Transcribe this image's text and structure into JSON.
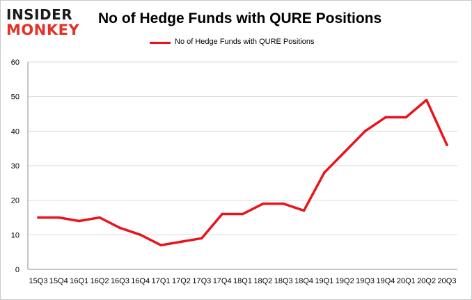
{
  "logo": {
    "line1": "INSIDER",
    "line2": "MONKEY"
  },
  "colors": {
    "series": "#e8141b",
    "grid": "#d9d9d9",
    "axis": "#8c8c8c"
  },
  "chart_data": {
    "type": "line",
    "title": "No of Hedge Funds with QURE Positions",
    "xlabel": "",
    "ylabel": "",
    "ylim": [
      0,
      60
    ],
    "yticks": [
      0,
      10,
      20,
      30,
      40,
      50,
      60
    ],
    "grid": true,
    "legend_position": "top-center",
    "categories": [
      "15Q3",
      "15Q4",
      "16Q1",
      "16Q2",
      "16Q3",
      "16Q4",
      "17Q1",
      "17Q2",
      "17Q3",
      "17Q4",
      "18Q1",
      "18Q2",
      "18Q3",
      "18Q4",
      "19Q1",
      "19Q2",
      "19Q3",
      "19Q4",
      "20Q1",
      "20Q2",
      "20Q3"
    ],
    "series": [
      {
        "name": "No of Hedge Funds with QURE Positions",
        "values": [
          15,
          15,
          14,
          15,
          12,
          10,
          7,
          8,
          9,
          16,
          16,
          19,
          19,
          17,
          28,
          34,
          40,
          44,
          44,
          49,
          36
        ]
      }
    ]
  }
}
